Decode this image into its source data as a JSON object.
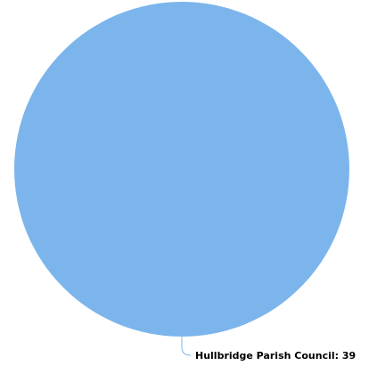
{
  "chart_data": {
    "type": "pie",
    "title": "",
    "slices": [
      {
        "label": "Hullbridge Parish Council",
        "value": 39,
        "color": "#7cb5ec",
        "data_label": "Hullbridge Parish Council: 39"
      }
    ],
    "connector_color": "#7cb5ec",
    "background": "#ffffff"
  }
}
